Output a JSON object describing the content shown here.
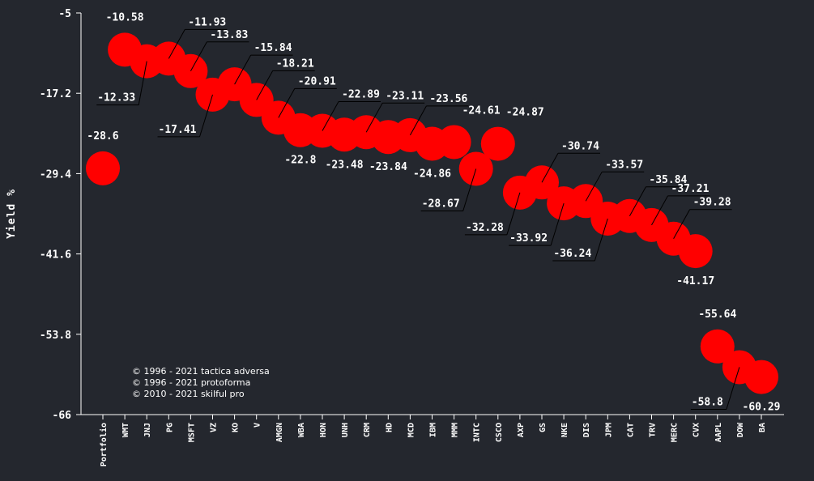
{
  "chart_data": {
    "type": "scatter",
    "title": "",
    "xlabel": "",
    "ylabel": "Yield %",
    "ylim": [
      -66,
      -5
    ],
    "yticks": [
      "-5",
      "-17.2",
      "-29.4",
      "-41.6",
      "-53.8",
      "-66"
    ],
    "yticks_values": [
      -5,
      -17.2,
      -29.4,
      -41.6,
      -53.8,
      -66
    ],
    "grid": false,
    "marker_color": "#ff0000",
    "categories": [
      "Portfolio",
      "WMT",
      "JNJ",
      "PG",
      "MSFT",
      "VZ",
      "KO",
      "V",
      "AMGN",
      "WBA",
      "HON",
      "UNH",
      "CRM",
      "HD",
      "MCD",
      "IBM",
      "MMM",
      "INTC",
      "CSCO",
      "AXP",
      "GS",
      "NKE",
      "DIS",
      "JPM",
      "CAT",
      "TRV",
      "MERC",
      "CVX",
      "AAPL",
      "DOW",
      "BA"
    ],
    "values": [
      -28.6,
      -10.58,
      -12.33,
      -11.93,
      -13.83,
      -17.41,
      -15.84,
      -18.21,
      -20.91,
      -22.8,
      -22.89,
      -23.48,
      -23.11,
      -23.84,
      -23.56,
      -24.86,
      -24.61,
      -28.67,
      -24.87,
      -32.28,
      -30.74,
      -33.92,
      -33.57,
      -36.24,
      -35.84,
      -37.21,
      -39.28,
      -41.17,
      -55.64,
      -58.8,
      -60.29
    ],
    "value_labels": [
      "-28.6",
      "-10.58",
      "-12.33",
      "-11.93",
      "-13.83",
      "-17.41",
      "-15.84",
      "-18.21",
      "-20.91",
      "-22.8",
      "-22.89",
      "-23.48",
      "-23.11",
      "-23.84",
      "-23.56",
      "-24.86",
      "-24.61",
      "-28.67",
      "-24.87",
      "-32.28",
      "-30.74",
      "-33.92",
      "-33.57",
      "-36.24",
      "-35.84",
      "-37.21",
      "-39.28",
      "-41.17",
      "-55.64",
      "-58.8",
      "-60.29"
    ]
  },
  "credits": [
    "© 1996 - 2021 tactica adversa",
    "© 1996 - 2021 protoforma",
    "© 2010 - 2021 skilful pro"
  ]
}
